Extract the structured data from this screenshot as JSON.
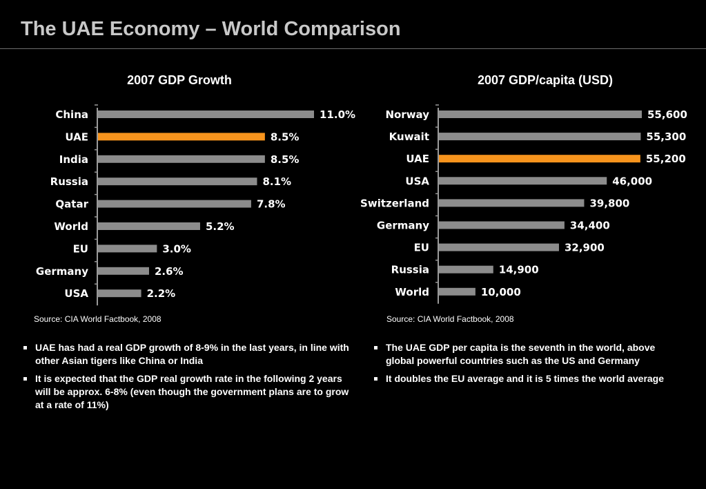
{
  "slide": {
    "title": "The UAE Economy – World Comparison"
  },
  "colors": {
    "highlight": "#f7941d",
    "default_bar": "#8c8c8c",
    "axis": "#9a9a9a"
  },
  "chart_data": [
    {
      "type": "bar",
      "orientation": "horizontal",
      "title": "2007 GDP Growth",
      "categories": [
        "China",
        "UAE",
        "India",
        "Russia",
        "Qatar",
        "World",
        "EU",
        "Germany",
        "USA"
      ],
      "values": [
        11.0,
        8.5,
        8.5,
        8.1,
        7.8,
        5.2,
        3.0,
        2.6,
        2.2
      ],
      "data_labels": [
        "11.0%",
        "8.5%",
        "8.5%",
        "8.1%",
        "7.8%",
        "5.2%",
        "3.0%",
        "2.6%",
        "2.2%"
      ],
      "unit": "%",
      "highlight_category": "UAE",
      "xlim": [
        0,
        11.0
      ],
      "grid": false,
      "source": "Source: CIA World Factbook, 2008"
    },
    {
      "type": "bar",
      "orientation": "horizontal",
      "title": "2007 GDP/capita (USD)",
      "categories": [
        "Norway",
        "Kuwait",
        "UAE",
        "USA",
        "Switzerland",
        "Germany",
        "EU",
        "Russia",
        "World"
      ],
      "values": [
        55600,
        55300,
        55200,
        46000,
        39800,
        34400,
        32900,
        14900,
        10000
      ],
      "data_labels": [
        "55,600",
        "55,300",
        "55,200",
        "46,000",
        "39,800",
        "34,400",
        "32,900",
        "14,900",
        "10,000"
      ],
      "unit": "USD",
      "highlight_category": "UAE",
      "xlim": [
        0,
        55600
      ],
      "grid": false,
      "source": "Source: CIA World Factbook, 2008"
    }
  ],
  "notes": {
    "growth": [
      "UAE has had a real GDP growth of 8-9% in the last years, in line with other Asian tigers like China or India",
      "It is expected that the GDP real growth rate in the following 2 years will be approx. 6-8% (even though the government plans are to grow at a rate of 11%)"
    ],
    "capita": [
      "The UAE GDP per capita is the seventh in the world, above global powerful countries such as the US and Germany",
      "It doubles the EU average and it is 5 times the world average"
    ]
  }
}
